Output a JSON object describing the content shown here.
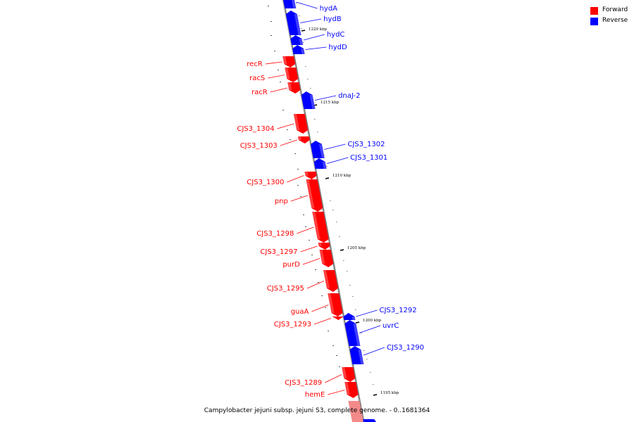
{
  "colors": {
    "forward": "#ff0000",
    "reverse": "#0000ff",
    "backbone": "#7f7f7f"
  },
  "legend": {
    "placement": "top-right",
    "items": [
      {
        "label": "Forward",
        "color": "#ff0000"
      },
      {
        "label": "Reverse",
        "color": "#0000ff"
      }
    ]
  },
  "caption": "Campylobacter jejuni subsp. jejuni S3, complete genome. - 0..1681364",
  "scale_labels": [
    "1220 kbp",
    "1215 kbp",
    "1210 kbp",
    "1205 kbp",
    "1200 kbp",
    "1195 kbp"
  ],
  "genes": [
    {
      "name": "hydA",
      "strand": "reverse"
    },
    {
      "name": "hydB",
      "strand": "reverse"
    },
    {
      "name": "hydC",
      "strand": "reverse"
    },
    {
      "name": "hydD",
      "strand": "reverse"
    },
    {
      "name": "recR",
      "strand": "forward"
    },
    {
      "name": "racS",
      "strand": "forward"
    },
    {
      "name": "racR",
      "strand": "forward"
    },
    {
      "name": "dnaJ-2",
      "strand": "reverse"
    },
    {
      "name": "CJS3_1304",
      "strand": "forward"
    },
    {
      "name": "CJS3_1303",
      "strand": "forward"
    },
    {
      "name": "CJS3_1302",
      "strand": "reverse"
    },
    {
      "name": "CJS3_1301",
      "strand": "reverse"
    },
    {
      "name": "CJS3_1300",
      "strand": "forward"
    },
    {
      "name": "pnp",
      "strand": "forward"
    },
    {
      "name": "CJS3_1298",
      "strand": "forward"
    },
    {
      "name": "CJS3_1297",
      "strand": "forward"
    },
    {
      "name": "purD",
      "strand": "forward"
    },
    {
      "name": "CJS3_1295",
      "strand": "forward"
    },
    {
      "name": "guaA",
      "strand": "forward"
    },
    {
      "name": "CJS3_1293",
      "strand": "forward"
    },
    {
      "name": "CJS3_1292",
      "strand": "reverse"
    },
    {
      "name": "uvrC",
      "strand": "reverse"
    },
    {
      "name": "CJS3_1290",
      "strand": "reverse"
    },
    {
      "name": "CJS3_1289",
      "strand": "forward"
    },
    {
      "name": "hemE",
      "strand": "forward"
    }
  ]
}
